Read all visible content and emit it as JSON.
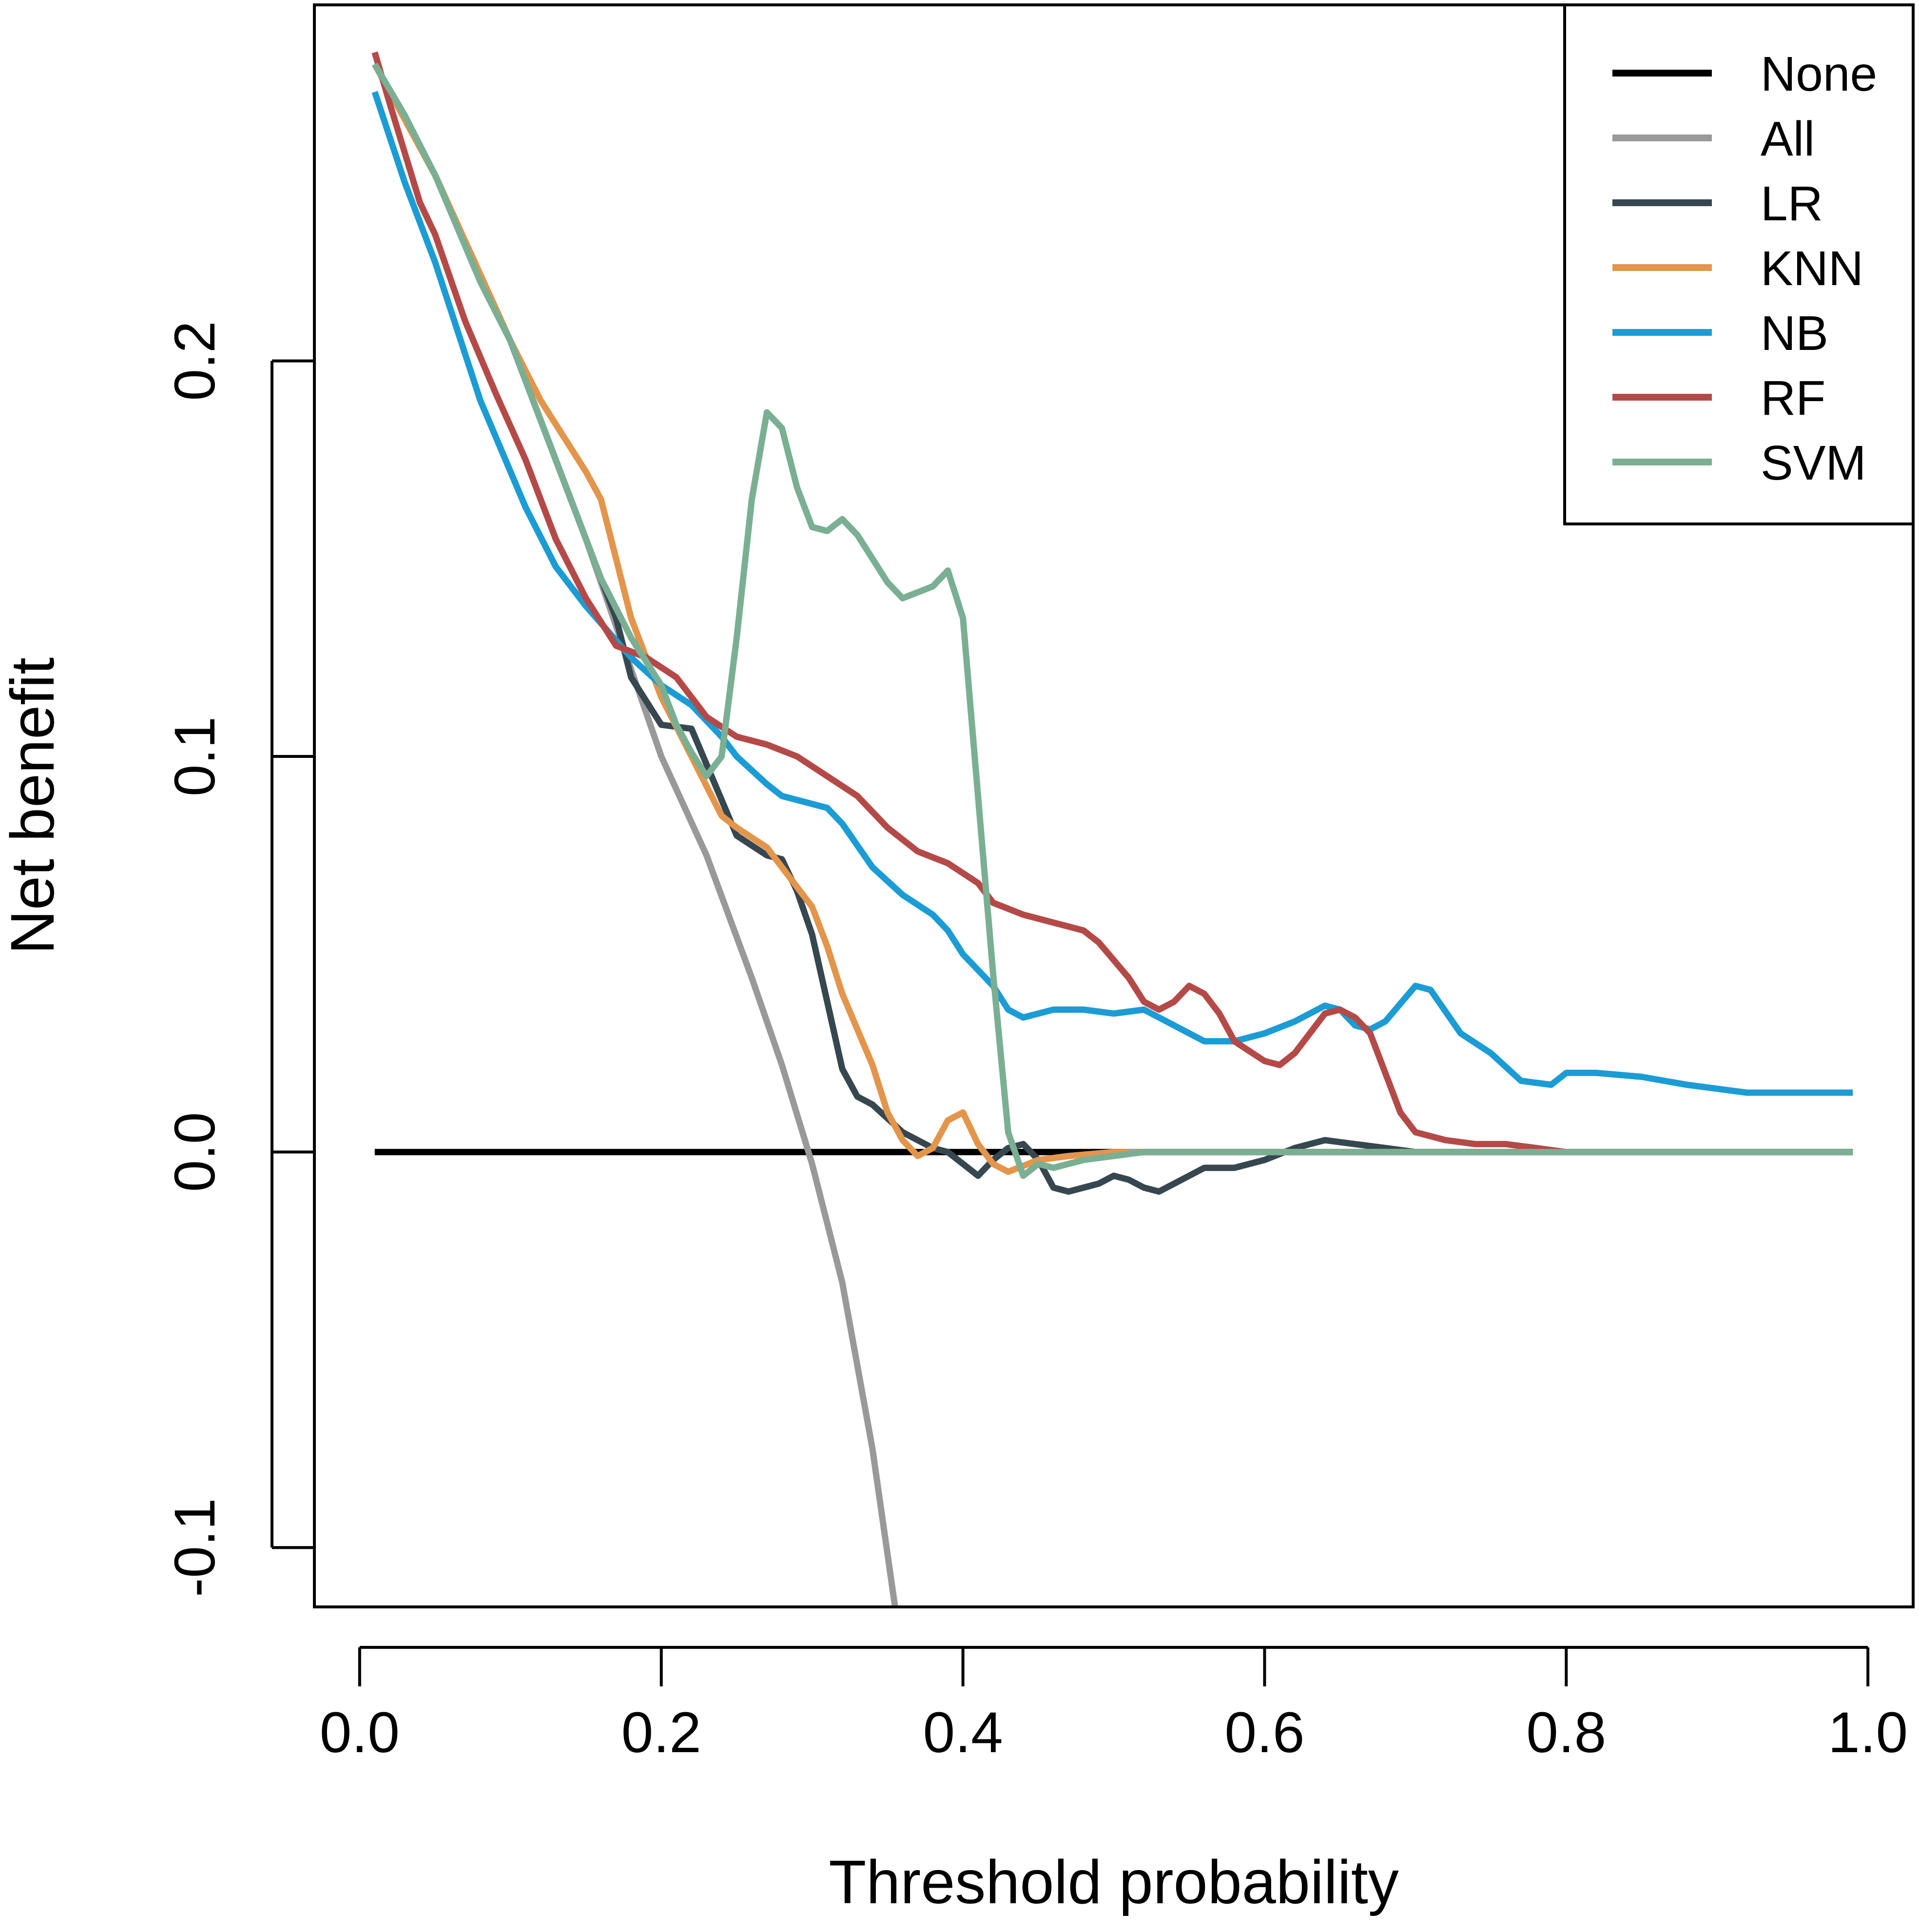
{
  "chart_data": {
    "type": "line",
    "title": "",
    "xlabel": "Threshold probability",
    "ylabel": "Net benefit",
    "xlim": [
      -0.03,
      1.03
    ],
    "ylim": [
      -0.115,
      0.29
    ],
    "xticks": [
      0.0,
      0.2,
      0.4,
      0.6,
      0.8,
      1.0
    ],
    "xtick_labels": [
      "0.0",
      "0.2",
      "0.4",
      "0.6",
      "0.8",
      "1.0"
    ],
    "yticks": [
      -0.1,
      0.0,
      0.1,
      0.2
    ],
    "ytick_labels": [
      "-0.1",
      "0.0",
      "0.1",
      "0.2"
    ],
    "grid": false,
    "legend_position": "top-right",
    "series": [
      {
        "name": "None",
        "color": "#000000",
        "points": [
          [
            0.01,
            0.0
          ],
          [
            0.99,
            0.0
          ]
        ]
      },
      {
        "name": "All",
        "color": "#999999",
        "points": [
          [
            0.01,
            0.275
          ],
          [
            0.05,
            0.247
          ],
          [
            0.1,
            0.205
          ],
          [
            0.15,
            0.155
          ],
          [
            0.2,
            0.1
          ],
          [
            0.23,
            0.075
          ],
          [
            0.26,
            0.044
          ],
          [
            0.28,
            0.022
          ],
          [
            0.3,
            -0.003
          ],
          [
            0.32,
            -0.033
          ],
          [
            0.34,
            -0.075
          ],
          [
            0.355,
            -0.115
          ]
        ]
      },
      {
        "name": "LR",
        "color": "#36474F",
        "points": [
          [
            0.01,
            0.275
          ],
          [
            0.05,
            0.247
          ],
          [
            0.1,
            0.205
          ],
          [
            0.14,
            0.165
          ],
          [
            0.17,
            0.135
          ],
          [
            0.18,
            0.12
          ],
          [
            0.2,
            0.108
          ],
          [
            0.22,
            0.107
          ],
          [
            0.25,
            0.08
          ],
          [
            0.27,
            0.075
          ],
          [
            0.28,
            0.074
          ],
          [
            0.29,
            0.066
          ],
          [
            0.3,
            0.055
          ],
          [
            0.31,
            0.038
          ],
          [
            0.32,
            0.021
          ],
          [
            0.33,
            0.014
          ],
          [
            0.34,
            0.012
          ],
          [
            0.36,
            0.005
          ],
          [
            0.38,
            0.001
          ],
          [
            0.39,
            0.0
          ],
          [
            0.4,
            -0.003
          ],
          [
            0.41,
            -0.006
          ],
          [
            0.42,
            -0.002
          ],
          [
            0.43,
            0.001
          ],
          [
            0.44,
            0.002
          ],
          [
            0.45,
            -0.002
          ],
          [
            0.46,
            -0.009
          ],
          [
            0.47,
            -0.01
          ],
          [
            0.49,
            -0.008
          ],
          [
            0.5,
            -0.006
          ],
          [
            0.51,
            -0.007
          ],
          [
            0.52,
            -0.009
          ],
          [
            0.53,
            -0.01
          ],
          [
            0.55,
            -0.006
          ],
          [
            0.56,
            -0.004
          ],
          [
            0.58,
            -0.004
          ],
          [
            0.6,
            -0.002
          ],
          [
            0.62,
            0.001
          ],
          [
            0.64,
            0.003
          ],
          [
            0.66,
            0.002
          ],
          [
            0.68,
            0.001
          ],
          [
            0.7,
            0.0
          ],
          [
            0.75,
            0.0
          ],
          [
            0.99,
            0.0
          ]
        ]
      },
      {
        "name": "KNN",
        "color": "#E3954C",
        "points": [
          [
            0.01,
            0.275
          ],
          [
            0.05,
            0.247
          ],
          [
            0.1,
            0.205
          ],
          [
            0.12,
            0.19
          ],
          [
            0.14,
            0.178
          ],
          [
            0.15,
            0.172
          ],
          [
            0.16,
            0.165
          ],
          [
            0.17,
            0.15
          ],
          [
            0.18,
            0.135
          ],
          [
            0.2,
            0.115
          ],
          [
            0.22,
            0.1
          ],
          [
            0.24,
            0.085
          ],
          [
            0.25,
            0.082
          ],
          [
            0.27,
            0.077
          ],
          [
            0.28,
            0.072
          ],
          [
            0.3,
            0.062
          ],
          [
            0.31,
            0.052
          ],
          [
            0.32,
            0.04
          ],
          [
            0.34,
            0.022
          ],
          [
            0.35,
            0.01
          ],
          [
            0.36,
            0.003
          ],
          [
            0.37,
            -0.001
          ],
          [
            0.38,
            0.001
          ],
          [
            0.39,
            0.008
          ],
          [
            0.4,
            0.01
          ],
          [
            0.41,
            0.002
          ],
          [
            0.42,
            -0.003
          ],
          [
            0.43,
            -0.005
          ],
          [
            0.45,
            -0.002
          ],
          [
            0.47,
            -0.001
          ],
          [
            0.5,
            0.0
          ],
          [
            0.6,
            0.0
          ],
          [
            0.99,
            0.0
          ]
        ]
      },
      {
        "name": "NB",
        "color": "#1C9CD4",
        "points": [
          [
            0.01,
            0.268
          ],
          [
            0.03,
            0.245
          ],
          [
            0.05,
            0.225
          ],
          [
            0.08,
            0.19
          ],
          [
            0.11,
            0.163
          ],
          [
            0.13,
            0.148
          ],
          [
            0.15,
            0.138
          ],
          [
            0.18,
            0.125
          ],
          [
            0.2,
            0.118
          ],
          [
            0.22,
            0.113
          ],
          [
            0.24,
            0.105
          ],
          [
            0.25,
            0.1
          ],
          [
            0.27,
            0.093
          ],
          [
            0.28,
            0.09
          ],
          [
            0.3,
            0.088
          ],
          [
            0.31,
            0.087
          ],
          [
            0.32,
            0.083
          ],
          [
            0.34,
            0.072
          ],
          [
            0.36,
            0.065
          ],
          [
            0.38,
            0.06
          ],
          [
            0.39,
            0.056
          ],
          [
            0.4,
            0.05
          ],
          [
            0.42,
            0.042
          ],
          [
            0.43,
            0.036
          ],
          [
            0.44,
            0.034
          ],
          [
            0.46,
            0.036
          ],
          [
            0.48,
            0.036
          ],
          [
            0.5,
            0.035
          ],
          [
            0.52,
            0.036
          ],
          [
            0.54,
            0.032
          ],
          [
            0.56,
            0.028
          ],
          [
            0.58,
            0.028
          ],
          [
            0.6,
            0.03
          ],
          [
            0.62,
            0.033
          ],
          [
            0.64,
            0.037
          ],
          [
            0.65,
            0.036
          ],
          [
            0.66,
            0.032
          ],
          [
            0.67,
            0.031
          ],
          [
            0.68,
            0.033
          ],
          [
            0.7,
            0.042
          ],
          [
            0.71,
            0.041
          ],
          [
            0.73,
            0.03
          ],
          [
            0.75,
            0.025
          ],
          [
            0.77,
            0.018
          ],
          [
            0.79,
            0.017
          ],
          [
            0.8,
            0.02
          ],
          [
            0.82,
            0.02
          ],
          [
            0.85,
            0.019
          ],
          [
            0.88,
            0.017
          ],
          [
            0.92,
            0.015
          ],
          [
            0.95,
            0.015
          ],
          [
            0.99,
            0.015
          ]
        ]
      },
      {
        "name": "RF",
        "color": "#B44A48",
        "points": [
          [
            0.01,
            0.278
          ],
          [
            0.02,
            0.265
          ],
          [
            0.04,
            0.24
          ],
          [
            0.05,
            0.232
          ],
          [
            0.07,
            0.21
          ],
          [
            0.09,
            0.192
          ],
          [
            0.11,
            0.175
          ],
          [
            0.13,
            0.155
          ],
          [
            0.15,
            0.14
          ],
          [
            0.17,
            0.128
          ],
          [
            0.19,
            0.125
          ],
          [
            0.21,
            0.12
          ],
          [
            0.23,
            0.11
          ],
          [
            0.25,
            0.105
          ],
          [
            0.27,
            0.103
          ],
          [
            0.29,
            0.1
          ],
          [
            0.31,
            0.095
          ],
          [
            0.33,
            0.09
          ],
          [
            0.35,
            0.082
          ],
          [
            0.37,
            0.076
          ],
          [
            0.39,
            0.073
          ],
          [
            0.41,
            0.068
          ],
          [
            0.42,
            0.063
          ],
          [
            0.44,
            0.06
          ],
          [
            0.46,
            0.058
          ],
          [
            0.48,
            0.056
          ],
          [
            0.49,
            0.053
          ],
          [
            0.51,
            0.044
          ],
          [
            0.52,
            0.038
          ],
          [
            0.53,
            0.036
          ],
          [
            0.54,
            0.038
          ],
          [
            0.55,
            0.042
          ],
          [
            0.56,
            0.04
          ],
          [
            0.57,
            0.035
          ],
          [
            0.58,
            0.028
          ],
          [
            0.6,
            0.023
          ],
          [
            0.61,
            0.022
          ],
          [
            0.62,
            0.025
          ],
          [
            0.63,
            0.03
          ],
          [
            0.64,
            0.035
          ],
          [
            0.65,
            0.036
          ],
          [
            0.66,
            0.034
          ],
          [
            0.67,
            0.03
          ],
          [
            0.68,
            0.02
          ],
          [
            0.69,
            0.01
          ],
          [
            0.7,
            0.005
          ],
          [
            0.72,
            0.003
          ],
          [
            0.74,
            0.002
          ],
          [
            0.76,
            0.002
          ],
          [
            0.78,
            0.001
          ],
          [
            0.8,
            0.0
          ],
          [
            0.82,
            0.0
          ],
          [
            0.99,
            0.0
          ]
        ]
      },
      {
        "name": "SVM",
        "color": "#7AAF93",
        "points": [
          [
            0.01,
            0.275
          ],
          [
            0.03,
            0.262
          ],
          [
            0.05,
            0.247
          ],
          [
            0.08,
            0.22
          ],
          [
            0.1,
            0.205
          ],
          [
            0.12,
            0.185
          ],
          [
            0.14,
            0.165
          ],
          [
            0.16,
            0.145
          ],
          [
            0.18,
            0.13
          ],
          [
            0.2,
            0.118
          ],
          [
            0.21,
            0.108
          ],
          [
            0.22,
            0.101
          ],
          [
            0.23,
            0.095
          ],
          [
            0.24,
            0.1
          ],
          [
            0.25,
            0.13
          ],
          [
            0.26,
            0.165
          ],
          [
            0.27,
            0.187
          ],
          [
            0.28,
            0.183
          ],
          [
            0.29,
            0.168
          ],
          [
            0.3,
            0.158
          ],
          [
            0.31,
            0.157
          ],
          [
            0.32,
            0.16
          ],
          [
            0.33,
            0.156
          ],
          [
            0.35,
            0.144
          ],
          [
            0.36,
            0.14
          ],
          [
            0.38,
            0.143
          ],
          [
            0.39,
            0.147
          ],
          [
            0.4,
            0.135
          ],
          [
            0.41,
            0.09
          ],
          [
            0.42,
            0.045
          ],
          [
            0.43,
            0.005
          ],
          [
            0.44,
            -0.006
          ],
          [
            0.45,
            -0.003
          ],
          [
            0.46,
            -0.004
          ],
          [
            0.48,
            -0.002
          ],
          [
            0.5,
            -0.001
          ],
          [
            0.52,
            0.0
          ],
          [
            0.55,
            0.0
          ],
          [
            0.99,
            0.0
          ]
        ]
      }
    ]
  }
}
